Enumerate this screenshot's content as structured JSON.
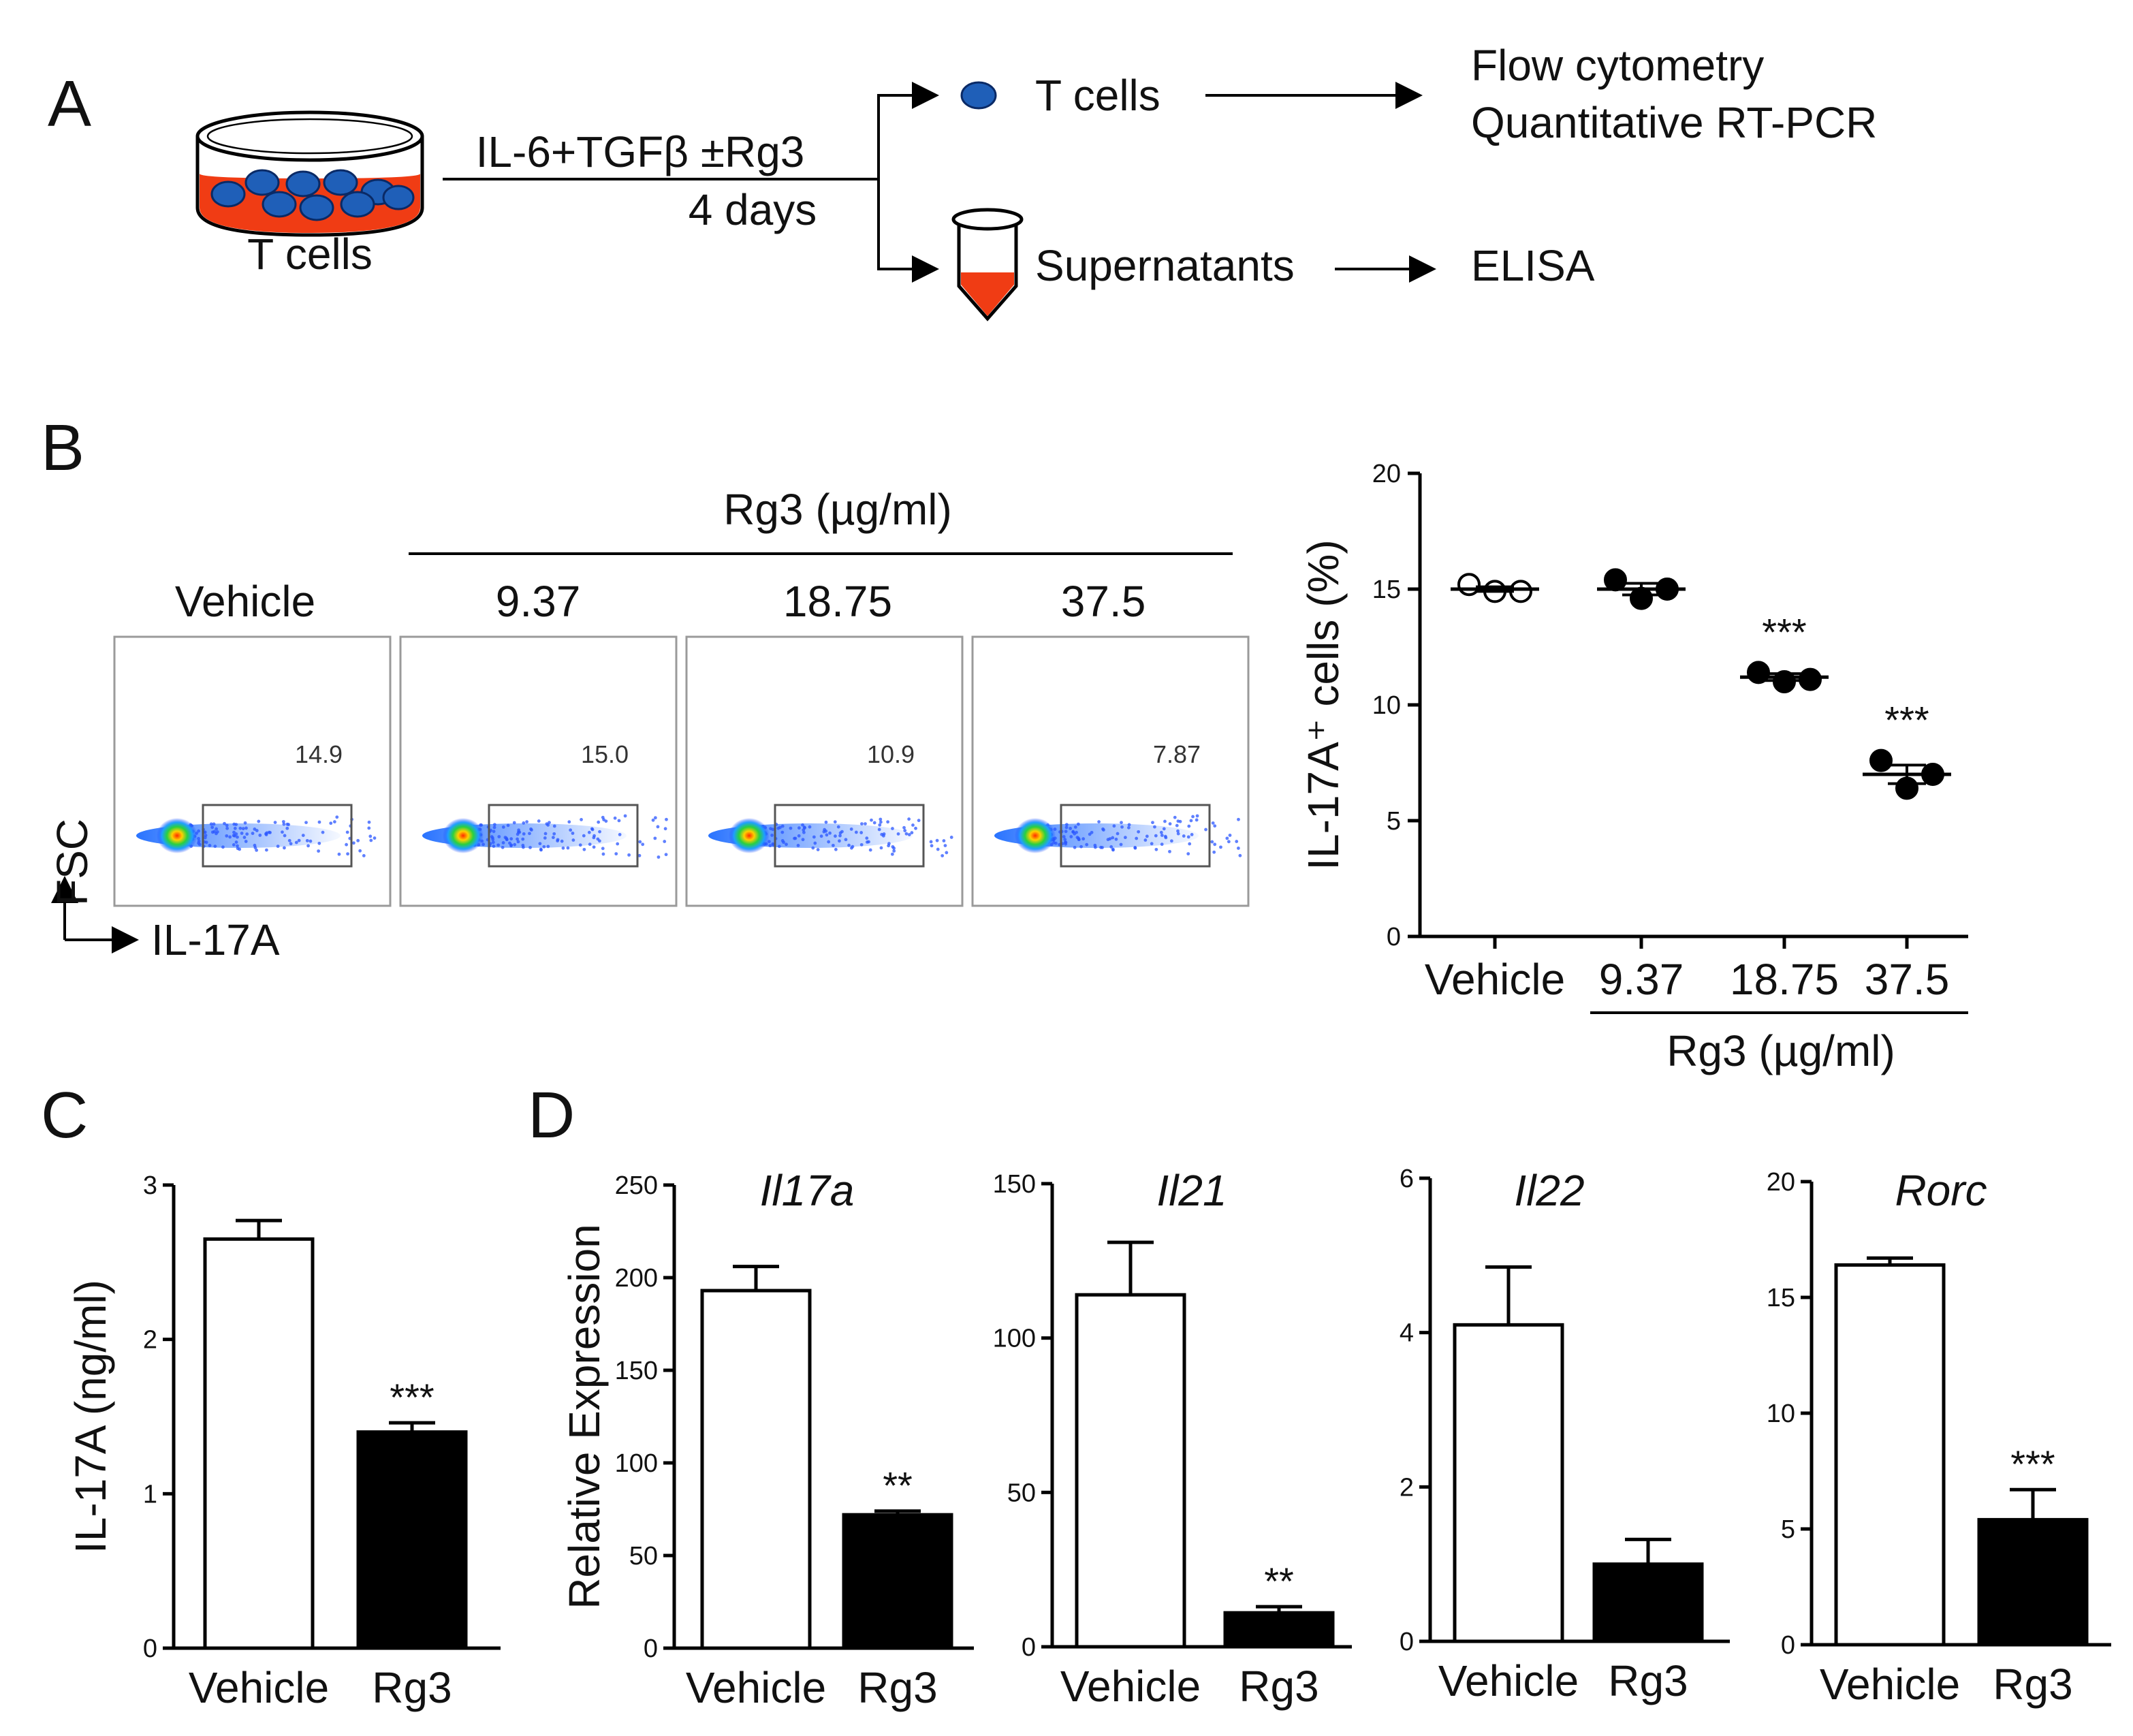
{
  "panel_a": {
    "letter": "A",
    "dish_label": "T cells",
    "treatment": "IL-6+TGFβ ±Rg3",
    "duration": "4 days",
    "cells_label": "T cells",
    "cells_output_1": "Flow cytometry",
    "cells_output_2": "Quantitative RT-PCR",
    "supernatant_label": "Supernatants",
    "supernatant_output": "ELISA",
    "colors": {
      "cell": "#1f5fb8",
      "medium": "#f03c14"
    }
  },
  "panel_b": {
    "letter": "B",
    "group_title": "Rg3 (µg/ml)",
    "flow_plots": [
      {
        "label": "Vehicle",
        "pct": "14.9"
      },
      {
        "label": "9.37",
        "pct": "15.0"
      },
      {
        "label": "18.75",
        "pct": "10.9"
      },
      {
        "label": "37.5",
        "pct": "7.87"
      }
    ],
    "y_axis_label": "FSC",
    "x_axis_label": "IL-17A"
  },
  "panel_c": {
    "letter": "C"
  },
  "panel_d": {
    "letter": "D"
  },
  "chart_data": [
    {
      "id": "b_scatter",
      "type": "scatter",
      "title": "",
      "ylabel": "IL-17A⁺ cells (%)",
      "ylim": [
        0,
        20
      ],
      "yticks": [
        "0",
        "5",
        "10",
        "15",
        "20"
      ],
      "categories": [
        "Vehicle",
        "9.37",
        "18.75",
        "37.5"
      ],
      "group_label": "Rg3 (µg/ml)",
      "points": [
        {
          "category": "Vehicle",
          "values": [
            15.2,
            14.9,
            14.9
          ],
          "filled": false,
          "mean": 15.0,
          "sem": 0.1,
          "sig": ""
        },
        {
          "category": "9.37",
          "values": [
            15.4,
            14.6,
            15.0
          ],
          "filled": true,
          "mean": 15.0,
          "sem": 0.25,
          "sig": ""
        },
        {
          "category": "18.75",
          "values": [
            11.4,
            11.0,
            11.1
          ],
          "filled": true,
          "mean": 11.2,
          "sem": 0.15,
          "sig": "***"
        },
        {
          "category": "37.5",
          "values": [
            7.6,
            6.4,
            7.0
          ],
          "filled": true,
          "mean": 7.0,
          "sem": 0.4,
          "sig": "***"
        }
      ]
    },
    {
      "id": "c_bar",
      "type": "bar",
      "title": "",
      "ylabel": "IL-17A (ng/ml)",
      "ylim": [
        0,
        3
      ],
      "yticks": [
        "0",
        "1",
        "2",
        "3"
      ],
      "categories": [
        "Vehicle",
        "Rg3"
      ],
      "values": [
        2.65,
        1.4
      ],
      "errors": [
        0.12,
        0.06
      ],
      "fills": [
        "#ffffff",
        "#000000"
      ],
      "sig": [
        "",
        "***"
      ]
    },
    {
      "id": "d_il17a",
      "type": "bar",
      "title": "Il17a",
      "ylabel": "Relative Expression",
      "ylim": [
        0,
        250
      ],
      "yticks": [
        "0",
        "50",
        "100",
        "150",
        "200",
        "250"
      ],
      "categories": [
        "Vehicle",
        "Rg3"
      ],
      "values": [
        193,
        72
      ],
      "errors": [
        13,
        2
      ],
      "fills": [
        "#ffffff",
        "#000000"
      ],
      "sig": [
        "",
        "**"
      ]
    },
    {
      "id": "d_il21",
      "type": "bar",
      "title": "Il21",
      "ylabel": "",
      "ylim": [
        0,
        150
      ],
      "yticks": [
        "0",
        "50",
        "100",
        "150"
      ],
      "categories": [
        "Vehicle",
        "Rg3"
      ],
      "values": [
        114,
        11
      ],
      "errors": [
        17,
        2
      ],
      "fills": [
        "#ffffff",
        "#000000"
      ],
      "sig": [
        "",
        "**"
      ]
    },
    {
      "id": "d_il22",
      "type": "bar",
      "title": "Il22",
      "ylabel": "",
      "ylim": [
        0,
        6
      ],
      "yticks": [
        "0",
        "2",
        "4",
        "6"
      ],
      "categories": [
        "Vehicle",
        "Rg3"
      ],
      "values": [
        4.1,
        1.0
      ],
      "errors": [
        0.75,
        0.32
      ],
      "fills": [
        "#ffffff",
        "#000000"
      ],
      "sig": [
        "",
        ""
      ]
    },
    {
      "id": "d_rorc",
      "type": "bar",
      "title": "Rorc",
      "ylabel": "",
      "ylim": [
        0,
        20
      ],
      "yticks": [
        "0",
        "5",
        "10",
        "15",
        "20"
      ],
      "categories": [
        "Vehicle",
        "Rg3"
      ],
      "values": [
        16.4,
        5.4
      ],
      "errors": [
        0.3,
        1.3
      ],
      "fills": [
        "#ffffff",
        "#000000"
      ],
      "sig": [
        "",
        "***"
      ]
    }
  ]
}
